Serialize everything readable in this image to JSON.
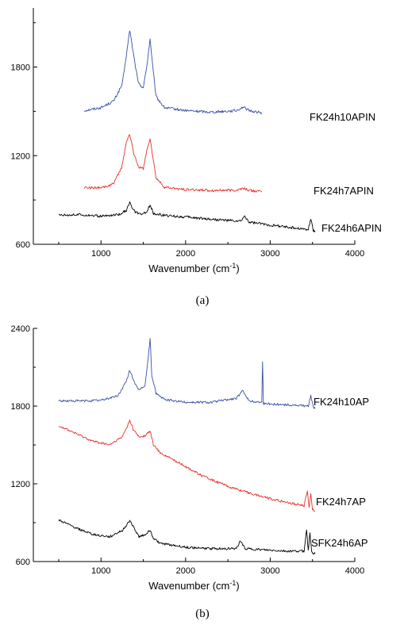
{
  "chart_data": [
    {
      "type": "line",
      "panel_caption": "(a)",
      "xlabel": "Wavenumber (cm",
      "xlabel_sup": "-1",
      "xlabel_end": ")",
      "ylabel": "",
      "xlim": [
        200,
        4000
      ],
      "ylim": [
        600,
        2200
      ],
      "xticks": [
        1000,
        2000,
        3000,
        4000
      ],
      "yticks": [
        600,
        1200,
        1800
      ],
      "grid": false,
      "series": [
        {
          "name": "FK24h10APIN",
          "color": "#3a4fa8",
          "x": [
            800,
            1000,
            1150,
            1250,
            1300,
            1340,
            1380,
            1440,
            1500,
            1540,
            1580,
            1610,
            1650,
            1750,
            2000,
            2300,
            2600,
            2680,
            2750,
            2900
          ],
          "y": [
            1505,
            1525,
            1570,
            1680,
            1880,
            2050,
            1900,
            1690,
            1660,
            1800,
            1990,
            1810,
            1600,
            1525,
            1505,
            1495,
            1505,
            1530,
            1505,
            1490
          ]
        },
        {
          "name": "FK24h7APIN",
          "color": "#e8312a",
          "x": [
            800,
            1000,
            1150,
            1250,
            1300,
            1340,
            1380,
            1440,
            1500,
            1540,
            1580,
            1610,
            1650,
            1750,
            2000,
            2300,
            2600,
            2680,
            2750,
            2900
          ],
          "y": [
            985,
            980,
            1010,
            1130,
            1300,
            1345,
            1230,
            1125,
            1110,
            1230,
            1320,
            1200,
            1050,
            985,
            970,
            965,
            965,
            980,
            965,
            955
          ]
        },
        {
          "name": "FK24h6APIN",
          "color": "#000000",
          "x": [
            500,
            800,
            1000,
            1200,
            1300,
            1340,
            1380,
            1460,
            1540,
            1580,
            1620,
            1750,
            2000,
            2300,
            2650,
            2700,
            2750,
            3000,
            3300,
            3450,
            3480,
            3510,
            3530
          ],
          "y": [
            800,
            800,
            790,
            800,
            830,
            880,
            830,
            800,
            815,
            870,
            810,
            795,
            785,
            770,
            755,
            790,
            750,
            730,
            710,
            700,
            770,
            695,
            690
          ]
        }
      ]
    },
    {
      "type": "line",
      "panel_caption": "(b)",
      "xlabel": "Wavenumber (cm",
      "xlabel_sup": "-1",
      "xlabel_end": ")",
      "ylabel": "",
      "xlim": [
        200,
        4000
      ],
      "ylim": [
        600,
        2400
      ],
      "xticks": [
        1000,
        2000,
        3000,
        4000
      ],
      "yticks": [
        600,
        1200,
        1800,
        2400
      ],
      "grid": false,
      "series": [
        {
          "name": "FK24h10AP",
          "color": "#3a4fa8",
          "x": [
            500,
            800,
            1000,
            1200,
            1300,
            1340,
            1380,
            1440,
            1520,
            1560,
            1580,
            1600,
            1650,
            1750,
            2000,
            2300,
            2600,
            2680,
            2750,
            2900,
            2910,
            2920,
            3200,
            3450,
            3480,
            3510,
            3530
          ],
          "y": [
            1840,
            1840,
            1845,
            1880,
            1990,
            2080,
            2010,
            1920,
            1960,
            2180,
            2330,
            2040,
            1900,
            1850,
            1830,
            1830,
            1860,
            1920,
            1840,
            1830,
            2150,
            1820,
            1810,
            1800,
            1880,
            1790,
            1780
          ]
        },
        {
          "name": "FK24h7AP",
          "color": "#e8312a",
          "x": [
            500,
            700,
            900,
            1100,
            1250,
            1300,
            1340,
            1380,
            1450,
            1520,
            1580,
            1620,
            1700,
            1900,
            2200,
            2500,
            2650,
            2800,
            3100,
            3400,
            3440,
            3460,
            3480,
            3500,
            3530
          ],
          "y": [
            1650,
            1590,
            1530,
            1500,
            1560,
            1630,
            1690,
            1620,
            1560,
            1570,
            1610,
            1500,
            1440,
            1370,
            1260,
            1180,
            1150,
            1120,
            1070,
            1030,
            1150,
            1010,
            1130,
            1000,
            990
          ]
        },
        {
          "name": "SFK24h6AP",
          "color": "#000000",
          "x": [
            500,
            700,
            900,
            1100,
            1250,
            1300,
            1340,
            1380,
            1450,
            1520,
            1580,
            1620,
            1700,
            2000,
            2300,
            2600,
            2650,
            2700,
            2900,
            3200,
            3400,
            3430,
            3450,
            3470,
            3490,
            3510,
            3530
          ],
          "y": [
            920,
            860,
            810,
            790,
            840,
            880,
            920,
            870,
            790,
            810,
            840,
            780,
            740,
            710,
            700,
            700,
            760,
            700,
            690,
            680,
            680,
            850,
            680,
            830,
            670,
            665,
            660
          ]
        }
      ]
    }
  ]
}
